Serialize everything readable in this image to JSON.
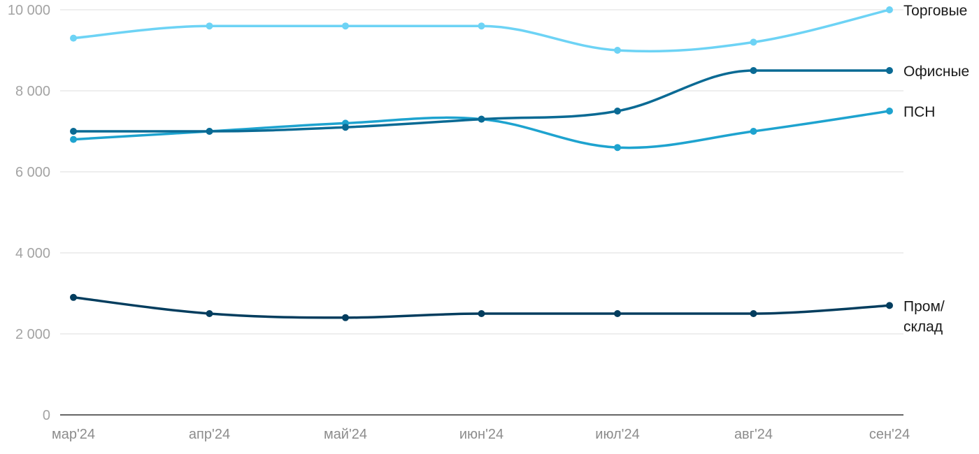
{
  "chart_data": {
    "type": "line",
    "categories": [
      "мар'24",
      "апр'24",
      "май'24",
      "июн'24",
      "июл'24",
      "авг'24",
      "сен'24"
    ],
    "ylim": [
      0,
      10000
    ],
    "yticks": [
      0,
      2000,
      4000,
      6000,
      8000,
      10000
    ],
    "ytick_labels": [
      "0",
      "2 000",
      "4 000",
      "6 000",
      "8 000",
      "10 000"
    ],
    "grid": true,
    "legend": "labels at line ends (right)",
    "series": [
      {
        "name": "Торговые",
        "label_lines": [
          "Торговые"
        ],
        "color": "#6dd3f5",
        "values": [
          9300,
          9600,
          9600,
          9600,
          9000,
          9200,
          10000
        ]
      },
      {
        "name": "Офисные",
        "label_lines": [
          "Офисные"
        ],
        "color": "#0a6a94",
        "values": [
          7000,
          7000,
          7100,
          7300,
          7500,
          8500,
          8500
        ]
      },
      {
        "name": "ПСН",
        "label_lines": [
          "ПСН"
        ],
        "color": "#1ea3cf",
        "values": [
          6800,
          7000,
          7200,
          7300,
          6600,
          7000,
          7500
        ]
      },
      {
        "name": "Пром/склад",
        "label_lines": [
          "Пром/",
          "склад"
        ],
        "color": "#033d5e",
        "values": [
          2900,
          2500,
          2400,
          2500,
          2500,
          2500,
          2700
        ]
      }
    ]
  }
}
